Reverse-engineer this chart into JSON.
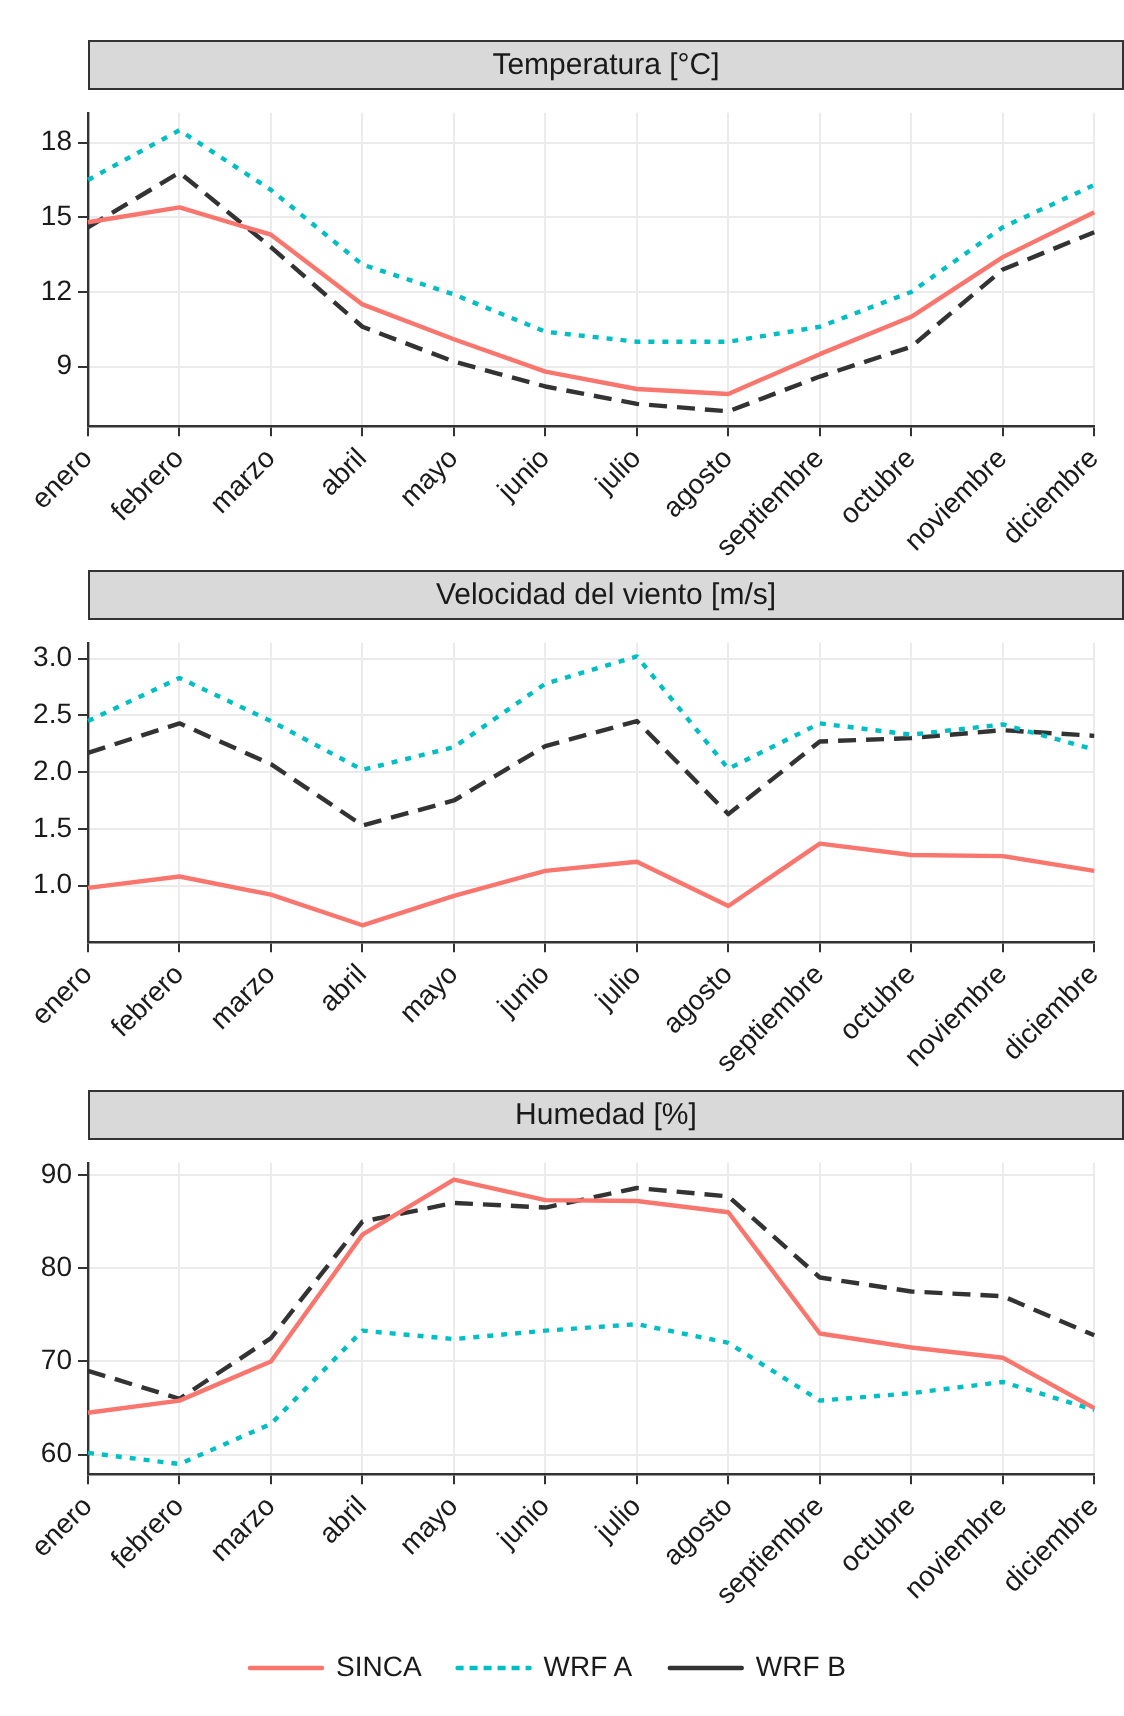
{
  "chart_data": [
    {
      "type": "line",
      "title": "Temperatura [°C]",
      "categories": [
        "enero",
        "febrero",
        "marzo",
        "abril",
        "mayo",
        "junio",
        "julio",
        "agosto",
        "septiembre",
        "octubre",
        "noviembre",
        "diciembre"
      ],
      "series": [
        {
          "color": "#f8766d",
          "line_style": "solid",
          "values": [
            14.8,
            15.4,
            14.3,
            11.5,
            10.1,
            8.8,
            8.1,
            7.9,
            9.5,
            11.0,
            13.4,
            15.2
          ]
        },
        {
          "color": "#00bfc4",
          "line_style": "dotted",
          "values": [
            16.5,
            18.5,
            16.1,
            13.1,
            11.9,
            10.4,
            10.0,
            10.0,
            10.6,
            12.0,
            14.6,
            16.3
          ]
        },
        {
          "color": "#333333",
          "line_style": "dashed",
          "values": [
            14.6,
            16.8,
            13.8,
            10.6,
            9.2,
            8.2,
            7.5,
            7.2,
            8.6,
            9.8,
            12.9,
            14.4
          ]
        }
      ],
      "ylim": [
        6.6,
        19.2
      ],
      "yticks": [
        9,
        12,
        15,
        18
      ],
      "grid": true,
      "legend": false,
      "marker": "none"
    },
    {
      "type": "line",
      "title": "Velocidad del viento [m/s]",
      "categories": [
        "enero",
        "febrero",
        "marzo",
        "abril",
        "mayo",
        "junio",
        "julio",
        "agosto",
        "septiembre",
        "octubre",
        "noviembre",
        "diciembre"
      ],
      "series": [
        {
          "color": "#f8766d",
          "line_style": "solid",
          "values": [
            0.98,
            1.08,
            0.92,
            0.65,
            0.91,
            1.13,
            1.21,
            0.82,
            1.37,
            1.27,
            1.26,
            1.13
          ]
        },
        {
          "color": "#00bfc4",
          "line_style": "dotted",
          "values": [
            2.45,
            2.83,
            2.45,
            2.02,
            2.22,
            2.78,
            3.02,
            2.03,
            2.43,
            2.33,
            2.42,
            2.2
          ]
        },
        {
          "color": "#333333",
          "line_style": "dashed",
          "values": [
            2.17,
            2.43,
            2.07,
            1.53,
            1.75,
            2.23,
            2.45,
            1.63,
            2.27,
            2.3,
            2.37,
            2.32
          ]
        }
      ],
      "ylim": [
        0.5,
        3.14
      ],
      "yticks": [
        {
          "value": 1,
          "label": "1.0"
        },
        {
          "value": 1.5,
          "label": "1.5"
        },
        {
          "value": 2,
          "label": "2.0"
        },
        {
          "value": 2.5,
          "label": "2.5"
        },
        {
          "value": 3,
          "label": "3.0"
        }
      ],
      "grid": true,
      "legend": false,
      "marker": "none"
    },
    {
      "type": "line",
      "title": "Humedad [%]",
      "categories": [
        "enero",
        "febrero",
        "marzo",
        "abril",
        "mayo",
        "junio",
        "julio",
        "agosto",
        "septiembre",
        "octubre",
        "noviembre",
        "diciembre"
      ],
      "series": [
        {
          "name": "SINCA",
          "color": "#f8766d",
          "line_style": "solid",
          "values": [
            64.5,
            65.8,
            70,
            83.6,
            89.5,
            87.3,
            87.2,
            86,
            73,
            71.5,
            70.4,
            65
          ]
        },
        {
          "name": "WRF A",
          "color": "#00bfc4",
          "line_style": "dotted",
          "values": [
            60.2,
            59,
            63.3,
            73.3,
            72.4,
            73.3,
            74,
            72,
            65.8,
            66.6,
            67.8,
            64.8
          ]
        },
        {
          "name": "WRF B",
          "color": "#333333",
          "line_style": "dashed",
          "values": [
            69,
            66,
            72.5,
            85,
            87,
            86.5,
            88.6,
            87.7,
            79,
            77.5,
            77,
            72.8
          ]
        }
      ],
      "ylim": [
        57.9,
        91.3
      ],
      "yticks": [
        60,
        70,
        80,
        90
      ],
      "grid": true,
      "legend": "bottom",
      "marker": "none"
    }
  ]
}
